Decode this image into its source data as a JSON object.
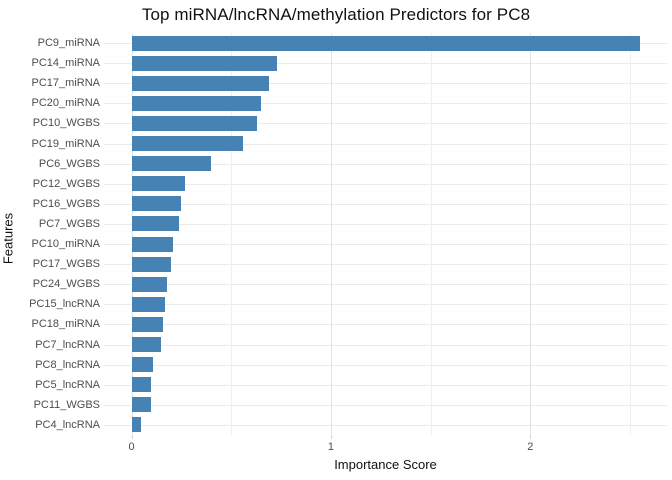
{
  "chart_data": {
    "type": "bar",
    "orientation": "horizontal",
    "title": "Top miRNA/lncRNA/methylation Predictors for PC8",
    "xlabel": "Importance Score",
    "ylabel": "Features",
    "xlim": [
      -0.14,
      2.68
    ],
    "xticks": [
      0,
      1,
      2
    ],
    "xtick_labels": [
      "0",
      "1",
      "2"
    ],
    "minor_xticks": [
      0.5,
      1.5,
      2.5
    ],
    "grid": true,
    "legend": false,
    "bar_color": "#4682B4",
    "categories": [
      "PC9_miRNA",
      "PC14_miRNA",
      "PC17_miRNA",
      "PC20_miRNA",
      "PC10_WGBS",
      "PC19_miRNA",
      "PC6_WGBS",
      "PC12_WGBS",
      "PC16_WGBS",
      "PC7_WGBS",
      "PC10_miRNA",
      "PC17_WGBS",
      "PC24_WGBS",
      "PC15_lncRNA",
      "PC18_miRNA",
      "PC7_lncRNA",
      "PC8_lncRNA",
      "PC5_lncRNA",
      "PC11_WGBS",
      "PC4_lncRNA"
    ],
    "values": [
      2.55,
      0.73,
      0.69,
      0.65,
      0.63,
      0.56,
      0.4,
      0.27,
      0.25,
      0.24,
      0.21,
      0.2,
      0.18,
      0.17,
      0.16,
      0.15,
      0.11,
      0.1,
      0.1,
      0.05
    ]
  }
}
